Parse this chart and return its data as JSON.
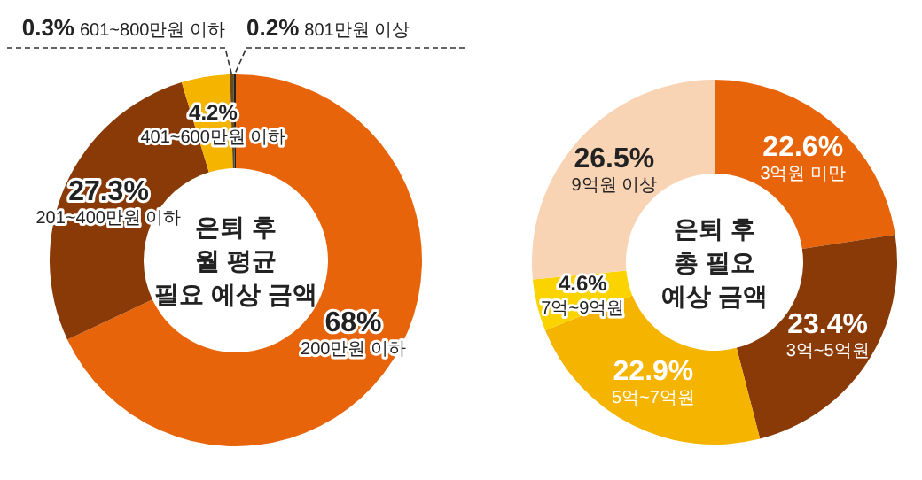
{
  "chart_data": [
    {
      "type": "donut",
      "title": "은퇴 후\n월 평균\n필요 예상 금액",
      "categories": [
        "200만원 이하",
        "201~400만원 이하",
        "401~600만원 이하",
        "601~800만원 이하",
        "801만원 이상"
      ],
      "values": [
        68,
        27.3,
        4.2,
        0.3,
        0.2
      ],
      "colors": [
        "#e8640a",
        "#8a3a06",
        "#f5b400",
        "#6b4a1a",
        "#222222"
      ],
      "value_labels": [
        "68%",
        "27.3%",
        "4.2%",
        "0.3%",
        "0.2%"
      ]
    },
    {
      "type": "donut",
      "title": "은퇴 후\n총 필요\n예상 금액",
      "categories": [
        "3억원 미만",
        "3억~5억원",
        "5억~7억원",
        "7억~9억원",
        "9억원 이상"
      ],
      "values": [
        22.6,
        23.4,
        22.9,
        4.6,
        26.5
      ],
      "colors": [
        "#e8640a",
        "#8a3a06",
        "#f5b400",
        "#fbd400",
        "#f8d3b4"
      ],
      "value_labels": [
        "22.6%",
        "23.4%",
        "22.9%",
        "4.6%",
        "26.5%"
      ]
    }
  ]
}
